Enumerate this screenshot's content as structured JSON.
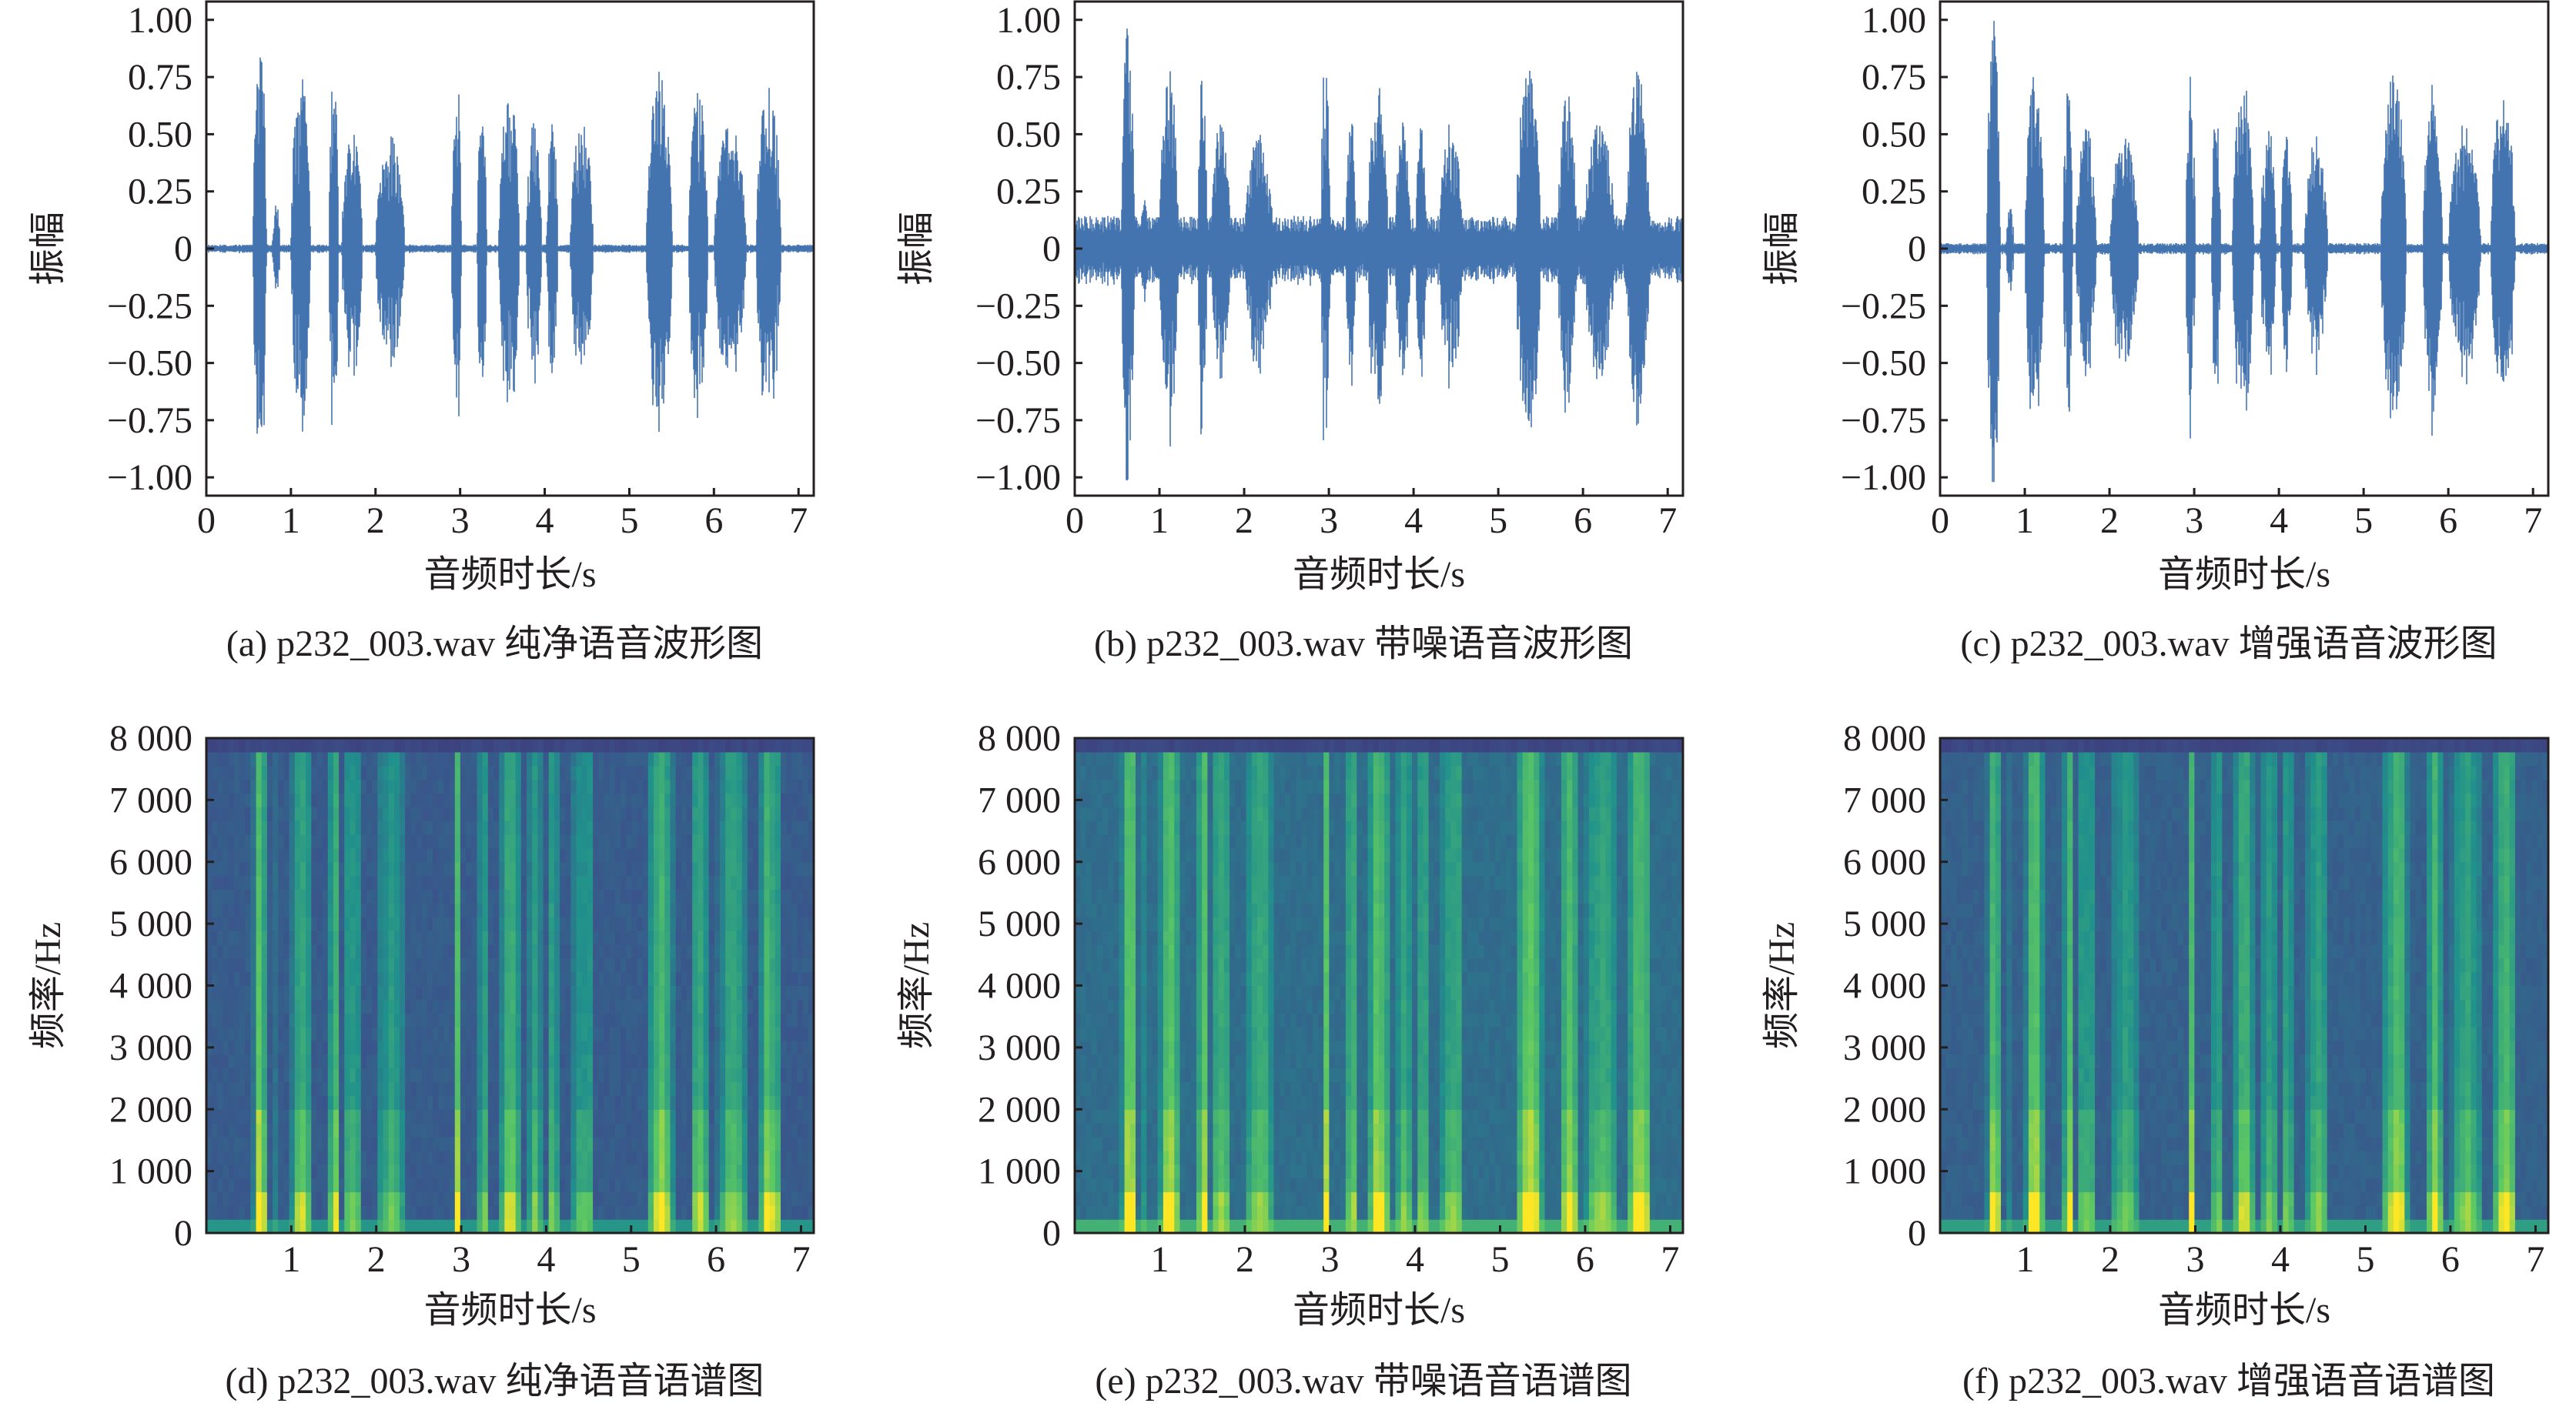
{
  "figure": {
    "waveform_ylabel": "振幅",
    "spectrogram_ylabel": "频率/Hz",
    "xlabel": "音频时长/s",
    "waveform_color": "#4474b0"
  },
  "chart_data": [
    {
      "id": "a",
      "type": "line",
      "caption": "(a)  p232_003.wav 纯净语音波形图",
      "title": "纯净语音波形图",
      "xlabel": "音频时长/s",
      "ylabel": "振幅",
      "xlim": [
        0,
        7.18
      ],
      "ylim": [
        -1.08,
        1.08
      ],
      "xticks": [
        "0",
        "1",
        "2",
        "3",
        "4",
        "5",
        "6",
        "7"
      ],
      "yticks": [
        "1.00",
        "0.75",
        "0.50",
        "0.25",
        "0",
        "−0.25",
        "−0.50",
        "−0.75",
        "−1.00"
      ],
      "noise_floor": 0.015,
      "segments": [
        [
          0.55,
          0.76,
          1.0
        ],
        [
          0.78,
          0.9,
          0.2
        ],
        [
          1.0,
          1.3,
          0.8
        ],
        [
          1.45,
          1.6,
          0.8
        ],
        [
          1.6,
          1.92,
          0.56
        ],
        [
          2.0,
          2.45,
          0.51
        ],
        [
          2.9,
          3.05,
          0.87
        ],
        [
          3.2,
          3.35,
          0.62
        ],
        [
          3.45,
          3.78,
          0.72
        ],
        [
          3.78,
          4.02,
          0.56
        ],
        [
          4.02,
          4.2,
          0.56
        ],
        [
          4.3,
          4.66,
          0.56
        ],
        [
          5.2,
          5.6,
          0.79
        ],
        [
          5.7,
          6.0,
          0.72
        ],
        [
          6.0,
          6.5,
          0.56
        ],
        [
          6.5,
          6.88,
          0.78
        ]
      ]
    },
    {
      "id": "b",
      "type": "line",
      "caption": "(b)  p232_003.wav 带噪语音波形图",
      "title": "带噪语音波形图",
      "xlabel": "音频时长/s",
      "ylabel": "振幅",
      "xlim": [
        0,
        7.18
      ],
      "ylim": [
        -1.08,
        1.08
      ],
      "xticks": [
        "0",
        "1",
        "2",
        "3",
        "4",
        "5",
        "6",
        "7"
      ],
      "yticks": [
        "1.00",
        "0.75",
        "0.50",
        "0.25",
        "0",
        "−0.25",
        "−0.50",
        "−0.75",
        "−1.00"
      ],
      "noise_floor": 0.12,
      "segments": [
        [
          0.55,
          0.76,
          1.0
        ],
        [
          0.78,
          0.9,
          0.25
        ],
        [
          1.0,
          1.3,
          0.8
        ],
        [
          1.45,
          1.6,
          0.8
        ],
        [
          1.6,
          1.92,
          0.56
        ],
        [
          2.0,
          2.45,
          0.51
        ],
        [
          2.9,
          3.05,
          0.87
        ],
        [
          3.2,
          3.35,
          0.62
        ],
        [
          3.45,
          3.78,
          0.72
        ],
        [
          3.78,
          4.02,
          0.56
        ],
        [
          4.02,
          4.2,
          0.56
        ],
        [
          4.3,
          4.66,
          0.56
        ],
        [
          5.2,
          5.6,
          0.79
        ],
        [
          5.7,
          6.0,
          0.72
        ],
        [
          6.0,
          6.5,
          0.56
        ],
        [
          6.5,
          6.88,
          0.78
        ]
      ]
    },
    {
      "id": "c",
      "type": "line",
      "caption": "(c)  p232_003.wav 增强语音波形图",
      "title": "增强语音波形图",
      "xlabel": "音频时长/s",
      "ylabel": "振幅",
      "xlim": [
        0,
        7.18
      ],
      "ylim": [
        -1.08,
        1.08
      ],
      "xticks": [
        "0",
        "1",
        "2",
        "3",
        "4",
        "5",
        "6",
        "7"
      ],
      "yticks": [
        "1.00",
        "0.75",
        "0.50",
        "0.25",
        "0",
        "−0.25",
        "−0.50",
        "−0.75",
        "−1.00"
      ],
      "noise_floor": 0.02,
      "segments": [
        [
          0.55,
          0.76,
          1.0
        ],
        [
          0.78,
          0.9,
          0.2
        ],
        [
          1.0,
          1.3,
          0.78
        ],
        [
          1.45,
          1.6,
          0.78
        ],
        [
          1.6,
          1.92,
          0.55
        ],
        [
          2.0,
          2.45,
          0.5
        ],
        [
          2.9,
          3.05,
          0.76
        ],
        [
          3.2,
          3.35,
          0.6
        ],
        [
          3.45,
          3.78,
          0.78
        ],
        [
          3.78,
          4.02,
          0.56
        ],
        [
          4.02,
          4.2,
          0.5
        ],
        [
          4.3,
          4.66,
          0.5
        ],
        [
          5.2,
          5.6,
          0.78
        ],
        [
          5.7,
          6.0,
          0.72
        ],
        [
          6.0,
          6.5,
          0.55
        ],
        [
          6.5,
          6.88,
          0.72
        ]
      ]
    },
    {
      "id": "d",
      "type": "heatmap",
      "caption": "(d)  p232_003.wav 纯净语音语谱图",
      "title": "纯净语音语谱图",
      "xlabel": "音频时长/s",
      "ylabel": "频率/Hz",
      "xlim": [
        0,
        7.15
      ],
      "ylim": [
        0,
        8000
      ],
      "xticks": [
        "1",
        "2",
        "3",
        "4",
        "5",
        "6",
        "7"
      ],
      "yticks": [
        "8 000",
        "7 000",
        "6 000",
        "5 000",
        "4 000",
        "3 000",
        "2 000",
        "1 000",
        "0"
      ],
      "noise_floor": 0.12
    },
    {
      "id": "e",
      "type": "heatmap",
      "caption": "(e)  p232_003.wav 带噪语音语谱图",
      "title": "带噪语音语谱图",
      "xlabel": "音频时长/s",
      "ylabel": "频率/Hz",
      "xlim": [
        0,
        7.15
      ],
      "ylim": [
        0,
        8000
      ],
      "xticks": [
        "1",
        "2",
        "3",
        "4",
        "5",
        "6",
        "7"
      ],
      "yticks": [
        "8 000",
        "7 000",
        "6 000",
        "5 000",
        "4 000",
        "3 000",
        "2 000",
        "1 000",
        "0"
      ],
      "noise_floor": 0.32
    },
    {
      "id": "f",
      "type": "heatmap",
      "caption": "(f)  p232_003.wav 增强语音语谱图",
      "title": "增强语音语谱图",
      "xlabel": "音频时长/s",
      "ylabel": "频率/Hz",
      "xlim": [
        0,
        7.15
      ],
      "ylim": [
        0,
        8000
      ],
      "xticks": [
        "1",
        "2",
        "3",
        "4",
        "5",
        "6",
        "7"
      ],
      "yticks": [
        "8 000",
        "7 000",
        "6 000",
        "5 000",
        "4 000",
        "3 000",
        "2 000",
        "1 000",
        "0"
      ],
      "noise_floor": 0.18
    }
  ]
}
